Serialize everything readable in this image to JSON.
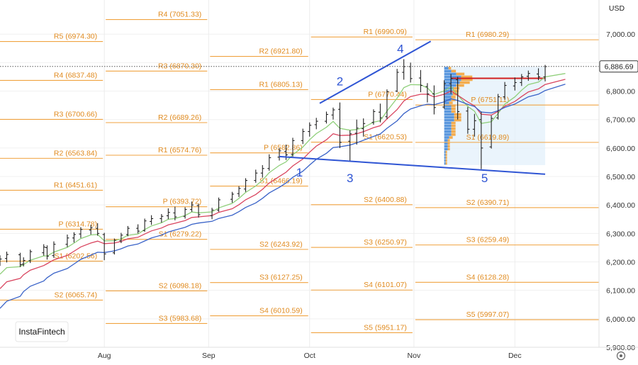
{
  "currency": "USD",
  "brand": "InstaFintech",
  "last_price": "6,886.69",
  "colors": {
    "pivot": "#f0a341",
    "bar": "#222222",
    "ma_fast": "#8fcf7a",
    "ma_mid": "#d9455f",
    "ma_slow": "#3a63c8",
    "wave": "#2f55d4",
    "poc": "#d11f1f",
    "profile_box": "#e3f0fb"
  },
  "chart_data": {
    "type": "ohlc",
    "ylim": [
      5900,
      7120
    ],
    "y_ticks": [
      "5,900.00",
      "6,000.00",
      "6,100.00",
      "6,200.00",
      "6,300.00",
      "6,400.00",
      "6,500.00",
      "6,600.00",
      "6,700.00",
      "6,800.00",
      "6,900.00",
      "7,000.00"
    ],
    "y_tick_values": [
      5900,
      6000,
      6100,
      6200,
      6300,
      6400,
      6500,
      6600,
      6700,
      6800,
      6900,
      7000
    ],
    "x_ticks": [
      "Aug",
      "Sep",
      "Oct",
      "Nov",
      "Dec"
    ],
    "x_tick_values": [
      "2025-08-01",
      "2025-09-01",
      "2025-10-01",
      "2025-11-01",
      "2025-12-01"
    ],
    "x_range": [
      "2025-07-01",
      "2025-12-26"
    ],
    "pivot_levels": [
      {
        "label": "R5 (6974.30)",
        "value": 6974.3,
        "period": "Aug"
      },
      {
        "label": "R4 (6837.48)",
        "value": 6837.48,
        "period": "Aug"
      },
      {
        "label": "R3 (6700.66)",
        "value": 6700.66,
        "period": "Aug"
      },
      {
        "label": "R2 (6563.84)",
        "value": 6563.84,
        "period": "Aug"
      },
      {
        "label": "R1 (6451.61)",
        "value": 6451.61,
        "period": "Aug"
      },
      {
        "label": "P (6314.78)",
        "value": 6314.78,
        "period": "Aug"
      },
      {
        "label": "S1 (6202.56)",
        "value": 6202.56,
        "period": "Aug"
      },
      {
        "label": "S2 (6065.74)",
        "value": 6065.74,
        "period": "Aug"
      },
      {
        "label": "R4 (7051.33)",
        "value": 7051.33,
        "period": "Sep"
      },
      {
        "label": "R3 (6870.30)",
        "value": 6870.3,
        "period": "Sep"
      },
      {
        "label": "R2 (6689.26)",
        "value": 6689.26,
        "period": "Sep"
      },
      {
        "label": "R1 (6574.76)",
        "value": 6574.76,
        "period": "Sep"
      },
      {
        "label": "P (6393.72)",
        "value": 6393.72,
        "period": "Sep"
      },
      {
        "label": "S1 (6279.22)",
        "value": 6279.22,
        "period": "Sep"
      },
      {
        "label": "S2 (6098.18)",
        "value": 6098.18,
        "period": "Sep"
      },
      {
        "label": "S3 (5983.68)",
        "value": 5983.68,
        "period": "Sep"
      },
      {
        "label": "R2 (6921.80)",
        "value": 6921.8,
        "period": "Oct"
      },
      {
        "label": "R1 (6805.13)",
        "value": 6805.13,
        "period": "Oct"
      },
      {
        "label": "P (6582.86)",
        "value": 6582.86,
        "period": "Oct"
      },
      {
        "label": "S1 (6466.19)",
        "value": 6466.19,
        "period": "Oct"
      },
      {
        "label": "S2 (6243.92)",
        "value": 6243.92,
        "period": "Oct"
      },
      {
        "label": "S3 (6127.25)",
        "value": 6127.25,
        "period": "Oct"
      },
      {
        "label": "S4 (6010.59)",
        "value": 6010.59,
        "period": "Oct"
      },
      {
        "label": "R1 (6990.09)",
        "value": 6990.09,
        "period": "Nov"
      },
      {
        "label": "P (6770.44)",
        "value": 6770.44,
        "period": "Nov"
      },
      {
        "label": "S1 (6620.53)",
        "value": 6620.53,
        "period": "Nov"
      },
      {
        "label": "S2 (6400.88)",
        "value": 6400.88,
        "period": "Nov"
      },
      {
        "label": "S3 (6250.97)",
        "value": 6250.97,
        "period": "Nov"
      },
      {
        "label": "S4 (6101.07)",
        "value": 6101.07,
        "period": "Nov"
      },
      {
        "label": "S5 (5951.17)",
        "value": 5951.17,
        "period": "Nov"
      },
      {
        "label": "R1 (6980.29)",
        "value": 6980.29,
        "period": "Dec"
      },
      {
        "label": "P (6751.11)",
        "value": 6751.11,
        "period": "Dec"
      },
      {
        "label": "S1 (6619.89)",
        "value": 6619.89,
        "period": "Dec"
      },
      {
        "label": "S2 (6390.71)",
        "value": 6390.71,
        "period": "Dec"
      },
      {
        "label": "S3 (6259.49)",
        "value": 6259.49,
        "period": "Dec"
      },
      {
        "label": "S4 (6128.28)",
        "value": 6128.28,
        "period": "Dec"
      },
      {
        "label": "S5 (5997.07)",
        "value": 5997.07,
        "period": "Dec"
      }
    ],
    "wave_labels": [
      {
        "label": "1",
        "date": "2025-09-28",
        "value": 6500
      },
      {
        "label": "2",
        "date": "2025-10-10",
        "value": 6820
      },
      {
        "label": "3",
        "date": "2025-10-13",
        "value": 6480
      },
      {
        "label": "4",
        "date": "2025-10-28",
        "value": 6935
      },
      {
        "label": "5",
        "date": "2025-11-22",
        "value": 6480
      }
    ],
    "trendlines": [
      {
        "from": {
          "date": "2025-10-04",
          "value": 6757
        },
        "to": {
          "date": "2025-11-06",
          "value": 6975
        }
      },
      {
        "from": {
          "date": "2025-09-22",
          "value": 6570
        },
        "to": {
          "date": "2025-12-10",
          "value": 6508
        }
      }
    ],
    "poc_line": {
      "value": 6845,
      "from": "2025-11-10",
      "to": "2025-12-10"
    },
    "volume_profile_range": {
      "from": "2025-11-10",
      "to": "2025-12-10",
      "low": 6540,
      "high": 6885
    },
    "ohlc": [
      {
        "d": "2025-07-01",
        "o": 6198,
        "h": 6223,
        "l": 6186,
        "c": 6210
      },
      {
        "d": "2025-07-03",
        "o": 6212,
        "h": 6236,
        "l": 6198,
        "c": 6226
      },
      {
        "d": "2025-07-07",
        "o": 6225,
        "h": 6232,
        "l": 6182,
        "c": 6190
      },
      {
        "d": "2025-07-08",
        "o": 6192,
        "h": 6216,
        "l": 6184,
        "c": 6205
      },
      {
        "d": "2025-07-10",
        "o": 6204,
        "h": 6243,
        "l": 6196,
        "c": 6236
      },
      {
        "d": "2025-07-14",
        "o": 6232,
        "h": 6262,
        "l": 6222,
        "c": 6252
      },
      {
        "d": "2025-07-15",
        "o": 6250,
        "h": 6258,
        "l": 6208,
        "c": 6220
      },
      {
        "d": "2025-07-17",
        "o": 6222,
        "h": 6272,
        "l": 6214,
        "c": 6262
      },
      {
        "d": "2025-07-21",
        "o": 6262,
        "h": 6296,
        "l": 6252,
        "c": 6284
      },
      {
        "d": "2025-07-23",
        "o": 6284,
        "h": 6304,
        "l": 6268,
        "c": 6296
      },
      {
        "d": "2025-07-25",
        "o": 6298,
        "h": 6322,
        "l": 6284,
        "c": 6314
      },
      {
        "d": "2025-07-28",
        "o": 6312,
        "h": 6330,
        "l": 6296,
        "c": 6320
      },
      {
        "d": "2025-07-30",
        "o": 6318,
        "h": 6336,
        "l": 6292,
        "c": 6300
      },
      {
        "d": "2025-08-01",
        "o": 6296,
        "h": 6302,
        "l": 6206,
        "c": 6228
      },
      {
        "d": "2025-08-04",
        "o": 6232,
        "h": 6282,
        "l": 6226,
        "c": 6276
      },
      {
        "d": "2025-08-06",
        "o": 6274,
        "h": 6302,
        "l": 6266,
        "c": 6294
      },
      {
        "d": "2025-08-08",
        "o": 6296,
        "h": 6326,
        "l": 6290,
        "c": 6318
      },
      {
        "d": "2025-08-11",
        "o": 6318,
        "h": 6332,
        "l": 6300,
        "c": 6308
      },
      {
        "d": "2025-08-13",
        "o": 6310,
        "h": 6352,
        "l": 6306,
        "c": 6344
      },
      {
        "d": "2025-08-15",
        "o": 6342,
        "h": 6364,
        "l": 6330,
        "c": 6352
      },
      {
        "d": "2025-08-18",
        "o": 6352,
        "h": 6368,
        "l": 6338,
        "c": 6360
      },
      {
        "d": "2025-08-20",
        "o": 6362,
        "h": 6388,
        "l": 6350,
        "c": 6374
      },
      {
        "d": "2025-08-22",
        "o": 6372,
        "h": 6394,
        "l": 6346,
        "c": 6358
      },
      {
        "d": "2025-08-25",
        "o": 6360,
        "h": 6392,
        "l": 6352,
        "c": 6384
      },
      {
        "d": "2025-08-27",
        "o": 6384,
        "h": 6412,
        "l": 6376,
        "c": 6400
      },
      {
        "d": "2025-08-29",
        "o": 6398,
        "h": 6404,
        "l": 6356,
        "c": 6366
      },
      {
        "d": "2025-09-02",
        "o": 6362,
        "h": 6390,
        "l": 6350,
        "c": 6382
      },
      {
        "d": "2025-09-04",
        "o": 6382,
        "h": 6426,
        "l": 6376,
        "c": 6418
      },
      {
        "d": "2025-09-08",
        "o": 6420,
        "h": 6446,
        "l": 6408,
        "c": 6438
      },
      {
        "d": "2025-09-10",
        "o": 6440,
        "h": 6466,
        "l": 6428,
        "c": 6458
      },
      {
        "d": "2025-09-12",
        "o": 6456,
        "h": 6494,
        "l": 6446,
        "c": 6486
      },
      {
        "d": "2025-09-15",
        "o": 6486,
        "h": 6524,
        "l": 6478,
        "c": 6512
      },
      {
        "d": "2025-09-17",
        "o": 6512,
        "h": 6540,
        "l": 6496,
        "c": 6528
      },
      {
        "d": "2025-09-19",
        "o": 6528,
        "h": 6578,
        "l": 6520,
        "c": 6566
      },
      {
        "d": "2025-09-22",
        "o": 6568,
        "h": 6600,
        "l": 6556,
        "c": 6590
      },
      {
        "d": "2025-09-24",
        "o": 6588,
        "h": 6612,
        "l": 6558,
        "c": 6576
      },
      {
        "d": "2025-09-26",
        "o": 6578,
        "h": 6636,
        "l": 6570,
        "c": 6626
      },
      {
        "d": "2025-09-29",
        "o": 6626,
        "h": 6668,
        "l": 6614,
        "c": 6658
      },
      {
        "d": "2025-10-01",
        "o": 6658,
        "h": 6690,
        "l": 6640,
        "c": 6680
      },
      {
        "d": "2025-10-03",
        "o": 6682,
        "h": 6706,
        "l": 6666,
        "c": 6694
      },
      {
        "d": "2025-10-06",
        "o": 6694,
        "h": 6728,
        "l": 6686,
        "c": 6718
      },
      {
        "d": "2025-10-08",
        "o": 6716,
        "h": 6742,
        "l": 6700,
        "c": 6734
      },
      {
        "d": "2025-10-10",
        "o": 6736,
        "h": 6760,
        "l": 6600,
        "c": 6620
      },
      {
        "d": "2025-10-13",
        "o": 6624,
        "h": 6662,
        "l": 6556,
        "c": 6650
      },
      {
        "d": "2025-10-15",
        "o": 6652,
        "h": 6700,
        "l": 6612,
        "c": 6670
      },
      {
        "d": "2025-10-17",
        "o": 6668,
        "h": 6704,
        "l": 6640,
        "c": 6686
      },
      {
        "d": "2025-10-20",
        "o": 6690,
        "h": 6736,
        "l": 6682,
        "c": 6728
      },
      {
        "d": "2025-10-22",
        "o": 6726,
        "h": 6756,
        "l": 6690,
        "c": 6706
      },
      {
        "d": "2025-10-24",
        "o": 6710,
        "h": 6806,
        "l": 6702,
        "c": 6798
      },
      {
        "d": "2025-10-27",
        "o": 6800,
        "h": 6878,
        "l": 6796,
        "c": 6866
      },
      {
        "d": "2025-10-29",
        "o": 6866,
        "h": 6912,
        "l": 6840,
        "c": 6886
      },
      {
        "d": "2025-10-31",
        "o": 6886,
        "h": 6900,
        "l": 6830,
        "c": 6844
      },
      {
        "d": "2025-11-03",
        "o": 6846,
        "h": 6874,
        "l": 6796,
        "c": 6820
      },
      {
        "d": "2025-11-05",
        "o": 6816,
        "h": 6828,
        "l": 6760,
        "c": 6790
      },
      {
        "d": "2025-11-07",
        "o": 6790,
        "h": 6820,
        "l": 6718,
        "c": 6742
      },
      {
        "d": "2025-11-10",
        "o": 6744,
        "h": 6838,
        "l": 6738,
        "c": 6826
      },
      {
        "d": "2025-11-12",
        "o": 6826,
        "h": 6860,
        "l": 6790,
        "c": 6844
      },
      {
        "d": "2025-11-14",
        "o": 6840,
        "h": 6850,
        "l": 6700,
        "c": 6728
      },
      {
        "d": "2025-11-17",
        "o": 6730,
        "h": 6744,
        "l": 6650,
        "c": 6666
      },
      {
        "d": "2025-11-19",
        "o": 6666,
        "h": 6720,
        "l": 6640,
        "c": 6696
      },
      {
        "d": "2025-11-21",
        "o": 6700,
        "h": 6728,
        "l": 6526,
        "c": 6600
      },
      {
        "d": "2025-11-24",
        "o": 6604,
        "h": 6714,
        "l": 6598,
        "c": 6704
      },
      {
        "d": "2025-11-26",
        "o": 6706,
        "h": 6790,
        "l": 6700,
        "c": 6780
      },
      {
        "d": "2025-11-28",
        "o": 6780,
        "h": 6832,
        "l": 6770,
        "c": 6820
      },
      {
        "d": "2025-12-01",
        "o": 6818,
        "h": 6848,
        "l": 6802,
        "c": 6830
      },
      {
        "d": "2025-12-03",
        "o": 6830,
        "h": 6860,
        "l": 6818,
        "c": 6850
      },
      {
        "d": "2025-12-05",
        "o": 6852,
        "h": 6872,
        "l": 6836,
        "c": 6862
      },
      {
        "d": "2025-12-08",
        "o": 6860,
        "h": 6880,
        "l": 6838,
        "c": 6850
      },
      {
        "d": "2025-12-10",
        "o": 6850,
        "h": 6892,
        "l": 6834,
        "c": 6886
      }
    ]
  }
}
